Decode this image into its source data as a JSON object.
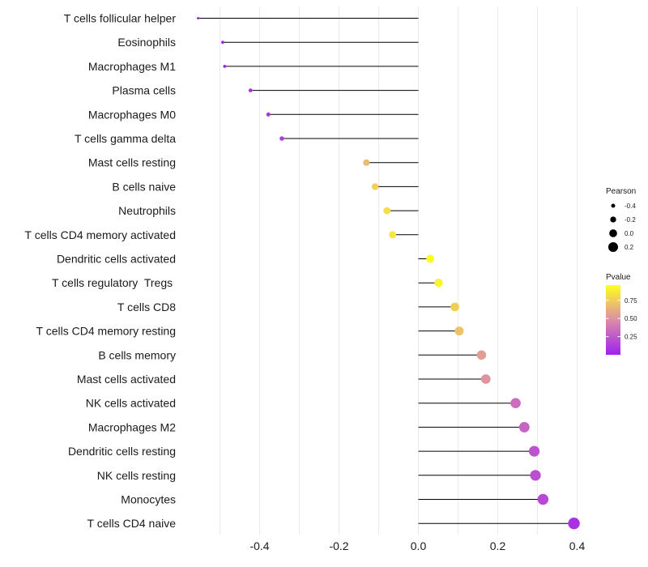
{
  "chart_data": {
    "type": "lollipop",
    "categories": [
      "T cells follicular helper",
      "Eosinophils",
      "Macrophages M1",
      "Plasma cells",
      "Macrophages M0",
      "T cells gamma delta",
      "Mast cells resting",
      "B cells naive",
      "Neutrophils",
      "T cells CD4 memory activated",
      "Dendritic cells activated",
      "T cells regulatory  Tregs ",
      "T cells CD8",
      "T cells CD4 memory resting",
      "B cells memory",
      "Mast cells activated",
      "NK cells activated",
      "Macrophages M2",
      "Dendritic cells resting",
      "NK cells resting",
      "Monocytes",
      "T cells CD4 naive"
    ],
    "values": [
      -0.555,
      -0.493,
      -0.488,
      -0.423,
      -0.378,
      -0.344,
      -0.131,
      -0.109,
      -0.079,
      -0.065,
      0.03,
      0.051,
      0.092,
      0.103,
      0.159,
      0.17,
      0.245,
      0.267,
      0.292,
      0.295,
      0.314,
      0.392
    ],
    "pvalues": [
      0.02,
      0.03,
      0.03,
      0.06,
      0.1,
      0.13,
      0.68,
      0.77,
      0.82,
      0.87,
      0.96,
      0.91,
      0.76,
      0.71,
      0.56,
      0.51,
      0.34,
      0.3,
      0.22,
      0.21,
      0.18,
      0.08
    ],
    "xlim": [
      -0.56,
      0.41
    ],
    "xticks": [
      -0.4,
      -0.2,
      0.0,
      0.2,
      0.4
    ],
    "xtick_labels": [
      "-0.4",
      "-0.2",
      "0.0",
      "0.2",
      "0.4"
    ],
    "grid": true,
    "legend_size": {
      "title": "Pearson",
      "values": [
        -0.4,
        -0.2,
        0.0,
        0.2
      ],
      "labels": [
        "-0.4",
        "-0.2",
        "0.0",
        "0.2"
      ]
    },
    "legend_color": {
      "title": "Pvalue",
      "range": [
        0.0,
        0.96
      ],
      "ticks": [
        0.25,
        0.5,
        0.75
      ],
      "labels": [
        "0.25",
        "0.50",
        "0.75"
      ],
      "color_low": "#a020f0",
      "color_mid": "#dc8ca8",
      "color_high": "#ffff1e"
    }
  }
}
